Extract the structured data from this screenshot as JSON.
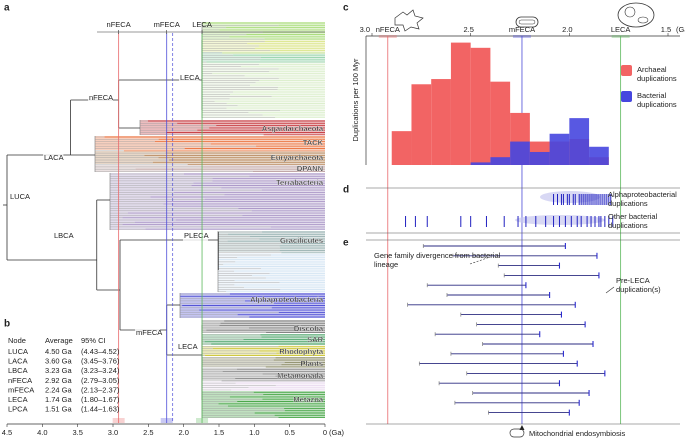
{
  "figure": {
    "panel_labels": [
      "a",
      "b",
      "c",
      "d",
      "e"
    ]
  },
  "chart_data": [
    {
      "type": "tree",
      "xlim": [
        4.5,
        0
      ],
      "xticks": [
        4.5,
        {
          "value": 4,
          "label": "4.0"
        },
        3.5,
        {
          "value": 3,
          "label": "3.0"
        },
        2.5,
        {
          "value": 2,
          "label": "2.0"
        },
        1.5,
        {
          "value": 1,
          "label": "1.0"
        },
        0.5,
        0
      ],
      "xlabel": "(Ga)",
      "nodes": [
        {
          "label": "LUCA",
          "age": 4.5
        },
        {
          "label": "LACA",
          "age": 3.6
        },
        {
          "label": "LBCA",
          "age": 3.23
        },
        {
          "label": "nFECA",
          "age": 2.92
        },
        {
          "label": "mFECA",
          "age": 2.24
        },
        {
          "label": "LECA",
          "age": 1.74
        },
        {
          "label": "LECA",
          "age": 1.74
        },
        {
          "label": "PLECA",
          "age": 1.51
        }
      ],
      "markers": [
        {
          "label": "nFECA",
          "value": 2.92,
          "color": "#e8696b"
        },
        {
          "label": "mFECA",
          "value": 2.24,
          "color": "#4d4dd8"
        },
        {
          "label": "LECA",
          "value": 1.74,
          "color": "#5cb85c"
        }
      ],
      "clades": [
        {
          "name": "Asgardarchaeota",
          "color": "#c0262c"
        },
        {
          "name": "TACK",
          "color": "#e8642a"
        },
        {
          "name": "Euryarchaeota",
          "color": "#b07a4a"
        },
        {
          "name": "DPANN",
          "color": "#b89a9a"
        },
        {
          "name": "Terrabacteria",
          "color": "#a08ac0"
        },
        {
          "name": "Gracilicutes",
          "color": "#8aa6a6"
        },
        {
          "name": "Alphaproteobacteria",
          "color": "#3a3ad0"
        },
        {
          "name": "Discoba",
          "color": "#707070"
        },
        {
          "name": "SAR",
          "color": "#3a9a5a"
        },
        {
          "name": "Rhodophyta",
          "color": "#c8c020"
        },
        {
          "name": "Plants",
          "color": "#7a7a50"
        },
        {
          "name": "Metamonada",
          "color": "#808080"
        },
        {
          "name": "Metazoa",
          "color": "#2e9a2e"
        }
      ]
    },
    {
      "type": "histogram",
      "ylabel": "Duplications per 100 Myr",
      "xlim": [
        3.0,
        1.5
      ],
      "xticks": [
        {
          "value": 3,
          "label": "3.0"
        },
        2.5,
        {
          "value": 2,
          "label": "2.0"
        },
        1.5
      ],
      "xlabel": "(Ga)",
      "ylim": [
        0,
        48
      ],
      "bins": [
        2.9,
        2.8,
        2.7,
        2.6,
        2.5,
        2.4,
        2.3,
        2.2,
        2.1,
        2.0,
        1.9,
        1.8
      ],
      "markers": [
        {
          "label": "nFECA",
          "value": 2.92,
          "color": "#e8696b"
        },
        {
          "label": "mFECA",
          "value": 2.24,
          "color": "#4d4dd8"
        },
        {
          "label": "LECA",
          "value": 1.74,
          "color": "#5cb85c"
        }
      ],
      "series": [
        {
          "name": "Archaeal duplications",
          "color": "#f26464",
          "values": [
            13,
            31,
            33,
            47,
            45,
            32,
            20,
            9,
            9,
            10,
            3
          ]
        },
        {
          "name": "Bacterial duplications",
          "color": "#4646df",
          "values": [
            0,
            0,
            0,
            0,
            1,
            3,
            9,
            5,
            12,
            18,
            7
          ]
        }
      ],
      "legend": "right"
    },
    {
      "type": "rug",
      "xlim": [
        3.0,
        1.5
      ],
      "series": [
        {
          "name": "Alphaproteobacterial duplications",
          "color": "#2020c0",
          "values": [
            2.08,
            2.06,
            2.04,
            2.03,
            2.01,
            2.0,
            1.98,
            1.97,
            1.95,
            1.94,
            1.93,
            1.92,
            1.91,
            1.9,
            1.89,
            1.88,
            1.87,
            1.86,
            1.85,
            1.84,
            1.83,
            1.82,
            1.81,
            1.8,
            1.79
          ]
        },
        {
          "name": "Other bacterial duplications",
          "color": "#2020c0",
          "values": [
            2.83,
            2.78,
            2.72,
            2.55,
            2.5,
            2.42,
            2.33,
            2.26,
            2.22,
            2.17,
            2.12,
            2.08,
            2.05,
            2.02,
            1.99,
            1.96,
            1.94,
            1.91,
            1.89,
            1.87,
            1.85,
            1.84,
            1.82,
            1.8,
            1.78
          ]
        }
      ]
    },
    {
      "type": "interval",
      "xlim": [
        3.0,
        1.5
      ],
      "color": "#2b2b80",
      "divergence": [
        2.74,
        2.59,
        2.36,
        2.33,
        2.72,
        2.62,
        2.82,
        2.55,
        2.47,
        2.68,
        2.44,
        2.6,
        2.76,
        2.52,
        2.66,
        2.49,
        2.58,
        2.41
      ],
      "duplication": [
        2.02,
        1.86,
        2.05,
        1.85,
        2.22,
        2.1,
        1.97,
        2.04,
        1.92,
        2.15,
        1.88,
        2.03,
        1.96,
        1.82,
        2.05,
        1.9,
        1.95,
        2.0
      ],
      "annotations": [
        "Gene family divergence from bacterial lineage",
        "Pre-LECA duplication(s)",
        "Mitochondrial endosymbiosis"
      ]
    }
  ],
  "table": {
    "columns": [
      "Node",
      "Average",
      "95% CI"
    ],
    "rows": [
      [
        "LUCA",
        "4.50 Ga",
        "(4.43–4.52)"
      ],
      [
        "LACA",
        "3.60 Ga",
        "(3.45–3.76)"
      ],
      [
        "LBCA",
        "3.23 Ga",
        "(3.23–3.24)"
      ],
      [
        "nFECA",
        "2.92 Ga",
        "(2.79–3.05)"
      ],
      [
        "mFECA",
        "2.24 Ga",
        "(2.13–2.37)"
      ],
      [
        "LECA",
        "1.74 Ga",
        "(1.80–1.67)"
      ],
      [
        "LPCA",
        "1.51 Ga",
        "(1.44–1.63)"
      ]
    ]
  }
}
